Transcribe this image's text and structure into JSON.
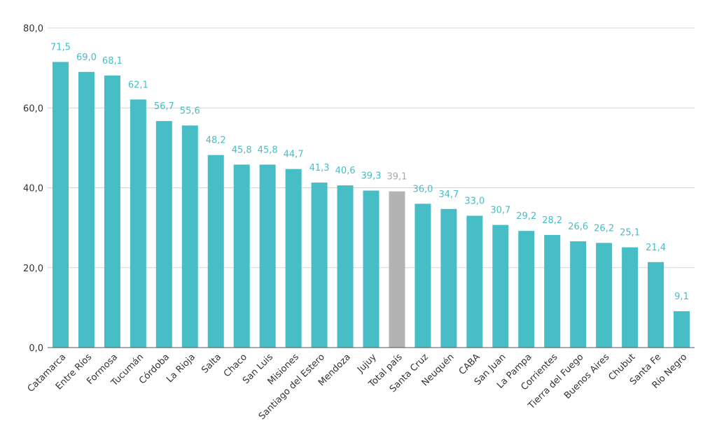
{
  "chart_data": {
    "type": "bar",
    "categories": [
      "Catamarca",
      "Entre Ríos",
      "Formosa",
      "Tucumán",
      "Córdoba",
      "La Rioja",
      "Salta",
      "Chaco",
      "San Luis",
      "Misiones",
      "Santiago del Estero",
      "Mendoza",
      "Jujuy",
      "Total país",
      "Santa Cruz",
      "Neuquén",
      "CABA",
      "San Juan",
      "La Pampa",
      "Corrientes",
      "Tierra del Fuego",
      "Buenos Aires",
      "Chubut",
      "Santa Fe",
      "Río Negro"
    ],
    "values": [
      71.5,
      69.0,
      68.1,
      62.1,
      56.7,
      55.6,
      48.2,
      45.8,
      45.8,
      44.7,
      41.3,
      40.6,
      39.3,
      39.1,
      36.0,
      34.7,
      33.0,
      30.7,
      29.2,
      28.2,
      26.6,
      26.2,
      25.1,
      21.4,
      9.1
    ],
    "value_labels": [
      "71,5",
      "69,0",
      "68,1",
      "62,1",
      "56,7",
      "55,6",
      "48,2",
      "45,8",
      "45,8",
      "44,7",
      "41,3",
      "40,6",
      "39,3",
      "39,1",
      "36,0",
      "34,7",
      "33,0",
      "30,7",
      "29,2",
      "28,2",
      "26,6",
      "26,2",
      "25,1",
      "21,4",
      "9,1"
    ],
    "yticks": [
      0,
      20,
      40,
      60,
      80
    ],
    "ytick_labels": [
      "0,0",
      "20,0",
      "40,0",
      "60,0",
      "80,0"
    ],
    "ylim": [
      0,
      80
    ],
    "title": "",
    "xlabel": "",
    "ylabel": "",
    "grid": true,
    "legend": "none",
    "colors": {
      "bar": "#47bdc6",
      "highlight_bar": "#b3b3b3",
      "label": "#47bdc6",
      "highlight_label": "#aaaaaa"
    },
    "highlight_category": "Total país"
  }
}
